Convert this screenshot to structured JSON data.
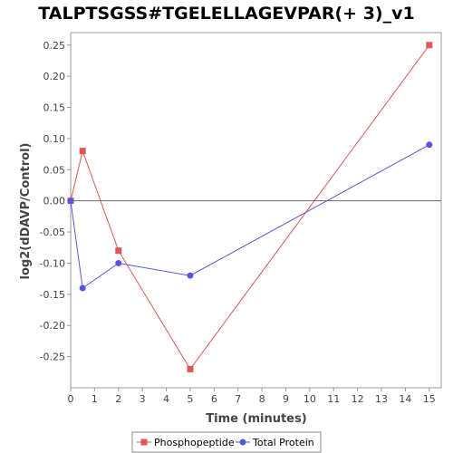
{
  "chart_data": {
    "type": "line",
    "title": "TALPTSGSS#TGELELLAGEVPAR(+ 3)_v1",
    "xlabel": "Time (minutes)",
    "ylabel": "log2(dDAVP/Control)",
    "xlim": [
      0,
      15.5
    ],
    "ylim": [
      -0.3,
      0.27
    ],
    "xticks": [
      0,
      1,
      2,
      3,
      4,
      5,
      6,
      7,
      8,
      9,
      10,
      11,
      12,
      13,
      14,
      15
    ],
    "yticks": [
      0.25,
      0.2,
      0.15,
      0.1,
      0.05,
      0.0,
      -0.05,
      -0.1,
      -0.15,
      -0.2,
      -0.25
    ],
    "ytick_labels": [
      "0.25",
      "0.20",
      "0.15",
      "0.10",
      "0.05",
      "0.00",
      "-0.05",
      "-0.10",
      "-0.15",
      "-0.20",
      "-0.25"
    ],
    "zero_line": true,
    "grid": false,
    "legend_position": "bottom-center",
    "series": [
      {
        "name": "Phosphopeptide",
        "color": "#e05555",
        "marker": "square",
        "x": [
          0,
          0.5,
          2,
          5,
          15
        ],
        "y": [
          0.0,
          0.08,
          -0.08,
          -0.27,
          0.25
        ]
      },
      {
        "name": "Total Protein",
        "color": "#5555e0",
        "marker": "circle",
        "x": [
          0,
          0.5,
          2,
          5,
          15
        ],
        "y": [
          0.0,
          -0.14,
          -0.1,
          -0.12,
          0.09
        ]
      }
    ]
  }
}
